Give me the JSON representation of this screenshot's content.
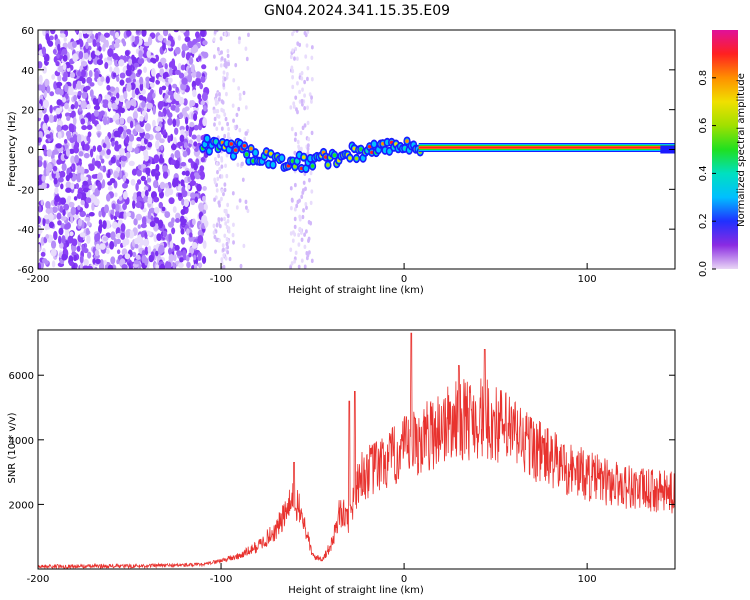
{
  "title": "GN04.2024.341.15.35.E09",
  "colors": {
    "trace": "#e8322e",
    "background": "#ffffff",
    "axis": "#000000"
  },
  "chart_data": [
    {
      "type": "heatmap",
      "xlabel": "Height of straight line (km)",
      "ylabel": "Frequency (Hz)",
      "xlim": [
        -200,
        148
      ],
      "ylim": [
        -60,
        60
      ],
      "x_ticks": [
        "-200",
        "-100",
        "0",
        "100"
      ],
      "y_ticks": [
        "60",
        "40",
        "20",
        "0",
        "-20",
        "-40",
        "-60"
      ],
      "colorbar": {
        "label": "Normalized spectral amplitude",
        "range": [
          0.0,
          1.0
        ],
        "ticks": [
          "0.0",
          "0.2",
          "0.4",
          "0.6",
          "0.8"
        ],
        "colormap": "rainbow"
      },
      "ridge": [
        {
          "x": -110,
          "y": 3
        },
        {
          "x": -100,
          "y": 2
        },
        {
          "x": -90,
          "y": 0
        },
        {
          "x": -80,
          "y": -4
        },
        {
          "x": -70,
          "y": -5
        },
        {
          "x": -60,
          "y": -6
        },
        {
          "x": -50,
          "y": -6
        },
        {
          "x": -40,
          "y": -4
        },
        {
          "x": -30,
          "y": -2
        },
        {
          "x": -20,
          "y": 0
        },
        {
          "x": -10,
          "y": 1
        },
        {
          "x": 0,
          "y": 2
        },
        {
          "x": 10,
          "y": 1
        },
        {
          "x": 50,
          "y": 1
        },
        {
          "x": 100,
          "y": 1
        },
        {
          "x": 148,
          "y": 0
        }
      ]
    },
    {
      "type": "line",
      "xlabel": "Height of straight line (km)",
      "ylabel": "SNR (10 * v/v)",
      "xlim": [
        -200,
        148
      ],
      "ylim": [
        0,
        7400
      ],
      "x_ticks": [
        "-200",
        "-100",
        "0",
        "100"
      ],
      "y_ticks": [
        "6000",
        "4000",
        "2000"
      ],
      "envelope": [
        {
          "x": -200,
          "y": 80
        },
        {
          "x": -150,
          "y": 90
        },
        {
          "x": -110,
          "y": 130
        },
        {
          "x": -90,
          "y": 400
        },
        {
          "x": -80,
          "y": 700
        },
        {
          "x": -70,
          "y": 1200
        },
        {
          "x": -60,
          "y": 2200
        },
        {
          "x": -55,
          "y": 1500
        },
        {
          "x": -50,
          "y": 400
        },
        {
          "x": -45,
          "y": 300
        },
        {
          "x": -40,
          "y": 700
        },
        {
          "x": -35,
          "y": 1800
        },
        {
          "x": -30,
          "y": 1500
        },
        {
          "x": -25,
          "y": 2800
        },
        {
          "x": -20,
          "y": 3000
        },
        {
          "x": -10,
          "y": 3300
        },
        {
          "x": 0,
          "y": 3700
        },
        {
          "x": 10,
          "y": 4000
        },
        {
          "x": 20,
          "y": 4400
        },
        {
          "x": 30,
          "y": 4600
        },
        {
          "x": 40,
          "y": 4700
        },
        {
          "x": 50,
          "y": 4500
        },
        {
          "x": 60,
          "y": 4200
        },
        {
          "x": 70,
          "y": 3800
        },
        {
          "x": 80,
          "y": 3400
        },
        {
          "x": 90,
          "y": 3100
        },
        {
          "x": 100,
          "y": 2900
        },
        {
          "x": 110,
          "y": 2700
        },
        {
          "x": 120,
          "y": 2600
        },
        {
          "x": 130,
          "y": 2450
        },
        {
          "x": 148,
          "y": 2350
        }
      ],
      "peaks": [
        {
          "x": -60,
          "y": 3300
        },
        {
          "x": -30,
          "y": 5200
        },
        {
          "x": -27,
          "y": 5500
        },
        {
          "x": 4,
          "y": 7300
        },
        {
          "x": 30,
          "y": 6300
        },
        {
          "x": 44,
          "y": 6800
        }
      ]
    }
  ]
}
